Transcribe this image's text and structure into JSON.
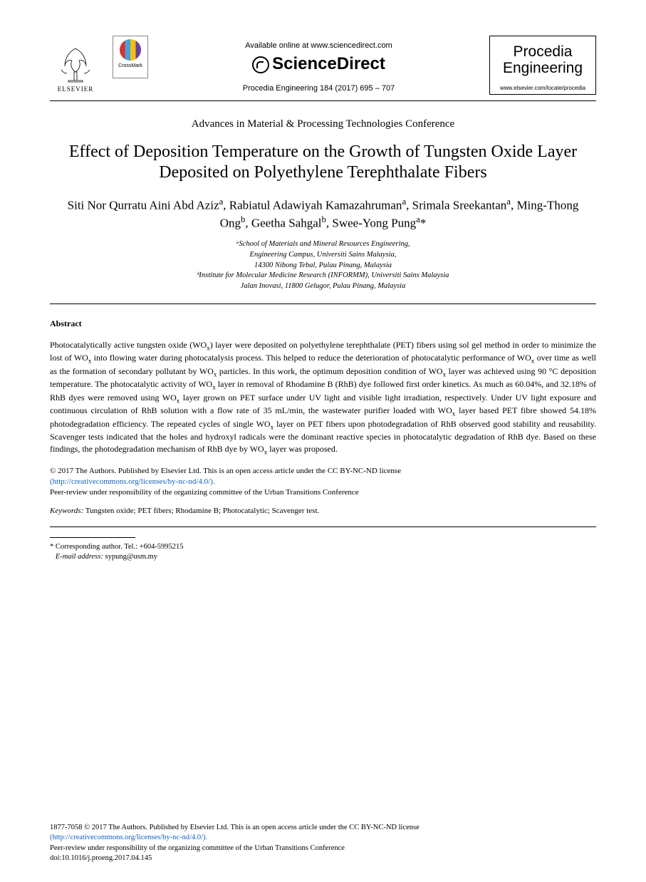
{
  "header": {
    "elsevier_label": "ELSEVIER",
    "crossmark_label": "CrossMark",
    "available_text": "Available online at www.sciencedirect.com",
    "sciencedirect": "ScienceDirect",
    "citation": "Procedia Engineering 184 (2017) 695 – 707",
    "journal_name_line1": "Procedia",
    "journal_name_line2": "Engineering",
    "journal_url": "www.elsevier.com/locate/procedia"
  },
  "conference": "Advances in Material & Processing Technologies Conference",
  "title": "Effect of Deposition Temperature on the Growth of Tungsten Oxide Layer Deposited on Polyethylene Terephthalate Fibers",
  "authors_html": "Siti Nor Qurratu Aini Abd Aziz<sup>a</sup>, Rabiatul Adawiyah Kamazahruman<sup>a</sup>, Srimala Sreekantan<sup>a</sup>, Ming-Thong Ong<sup>b</sup>, Geetha Sahgal<sup>b</sup>, Swee-Yong Pung<sup>a</sup>*",
  "affiliations": {
    "a1": "ᵃSchool of Materials and Mineral Resources Engineering,",
    "a2": "Engineering Campus, Universiti Sains Malaysia,",
    "a3": "14300 Nibong Tebal, Pulau Pinang, Malaysia",
    "b1": "ᵇInstitute for Molecular Medicine Research (INFORMM), Universiti Sains Malaysia",
    "b2": "Jalan Inovasi, 11800 Gelugor, Pulau Pinang, Malaysia"
  },
  "abstract": {
    "heading": "Abstract",
    "body_html": "Photocatalytically active tungsten oxide (WO<sub>x</sub>) layer were deposited on polyethylene terephthalate (PET) fibers using sol gel method in order to minimize the lost of WO<sub>x</sub> into flowing water during photocatalysis process. This helped to reduce the deterioration of photocatalytic performance of WO<sub>x</sub> over time as well as the formation of secondary pollutant by WO<sub>x</sub> particles. In this work, the optimum deposition condition of WO<sub>x</sub> layer was achieved using 90 °C deposition temperature. The photocatalytic activity of WO<sub>x</sub> layer in removal of Rhodamine B (RhB) dye followed first order kinetics. As much as 60.04%, and 32.18% of RhB dyes were removed using WO<sub>x</sub> layer grown on PET surface under UV light and visible light irradiation, respectively. Under UV light exposure and continuous circulation of RhB solution with a flow rate of 35 mL/min, the wastewater purifier loaded with WO<sub>x</sub> layer based PET fibre showed 54.18% photodegradation efficiency. The repeated cycles of single WO<sub>x</sub> layer on PET fibers upon photodegradation of RhB observed good stability and reusability. Scavenger tests indicated that the holes and hydroxyl radicals were the dominant reactive species in photocatalytic degradation of RhB dye. Based on these findings, the photodegradation mechanism of RhB dye by WO<sub>x</sub> layer was proposed."
  },
  "copyright": {
    "line1": "© 2017 The Authors. Published by Elsevier Ltd. This is an open access article under the CC BY-NC-ND license",
    "license_url": "(http://creativecommons.org/licenses/by-nc-nd/4.0/).",
    "peer_review": "Peer-review under responsibility of the organizing committee of the Urban Transitions Conference"
  },
  "keywords": {
    "label": "Keywords:",
    "text": " Tungsten oxide; PET fibers; Rhodamine B; Photocatalytic; Scavenger test."
  },
  "corresponding": {
    "line1": "* Corresponding author. Tel.: +604-5995215",
    "email_label": "E-mail address:",
    "email": " sypung@usm.my"
  },
  "footer": {
    "line1": "1877-7058 © 2017 The Authors. Published by Elsevier Ltd. This is an open access article under the CC BY-NC-ND license",
    "license_url": "(http://creativecommons.org/licenses/by-nc-nd/4.0/).",
    "peer_review": "Peer-review under responsibility of the organizing committee of the Urban Transitions Conference",
    "doi": "doi:10.1016/j.proeng.2017.04.145"
  },
  "colors": {
    "text": "#000000",
    "link": "#1060c0",
    "background": "#ffffff",
    "crossmark_red": "#d93030",
    "crossmark_blue": "#4aa0d8",
    "crossmark_yellow": "#f0c010",
    "crossmark_purple": "#6b3f9e"
  }
}
